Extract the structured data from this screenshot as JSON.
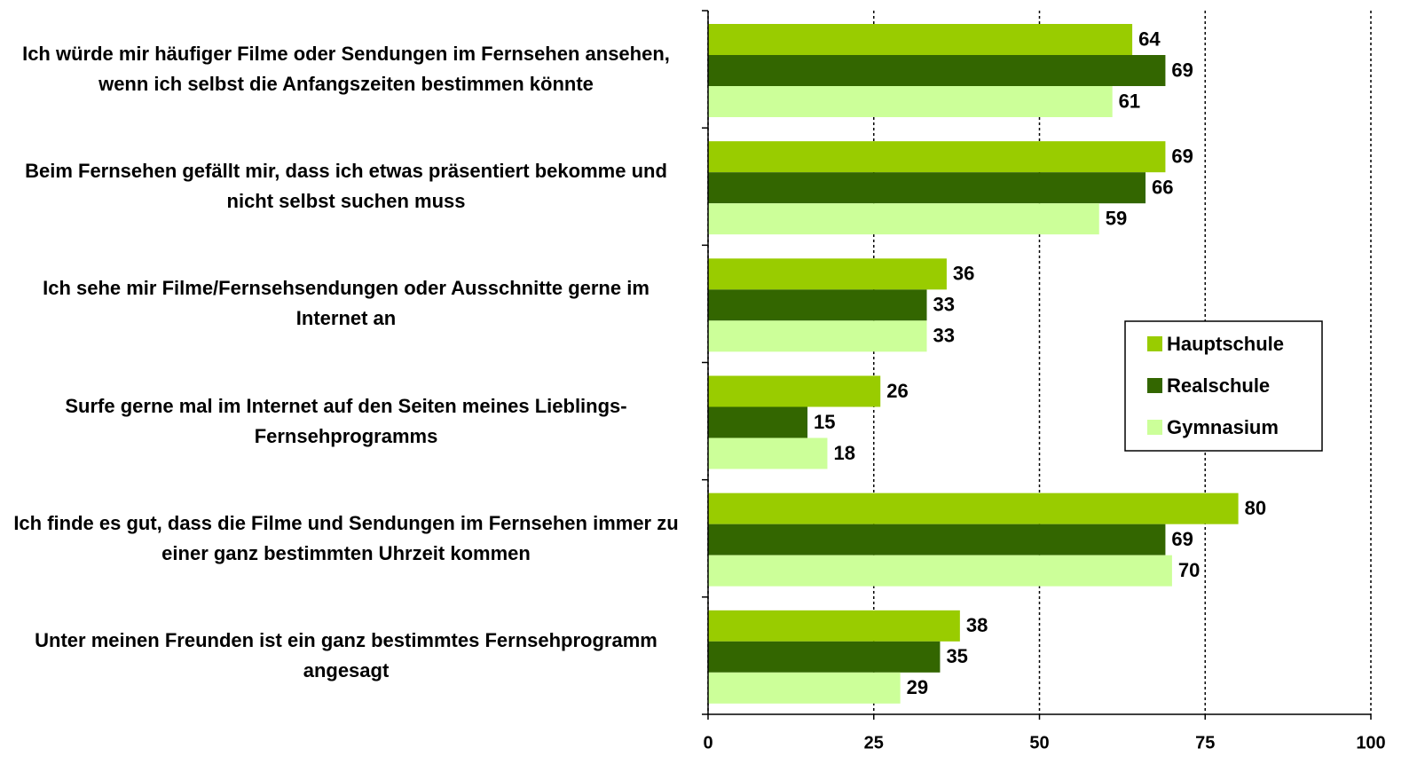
{
  "chart_data": {
    "type": "barh",
    "categories": [
      "Ich würde mir häufiger Filme oder Sendungen im Fernsehen ansehen, wenn ich selbst die Anfangszeiten bestimmen könnte",
      "Beim Fernsehen gefällt mir, dass ich etwas präsentiert bekomme und nicht selbst suchen muss",
      "Ich sehe mir Filme/Fernsehsendungen oder Ausschnitte gerne im Internet an",
      "Surfe gerne mal im Internet auf den Seiten meines Lieblings-Fernsehprogramms",
      "Ich finde es gut, dass die Filme und Sendungen im Fernsehen immer zu einer ganz bestimmten Uhrzeit kommen",
      "Unter meinen Freunden ist ein ganz bestimmtes Fernsehprogramm angesagt"
    ],
    "series": [
      {
        "name": "Hauptschule",
        "color": "#99cc00",
        "values": [
          64,
          69,
          36,
          26,
          80,
          38
        ]
      },
      {
        "name": "Realschule",
        "color": "#336600",
        "values": [
          69,
          66,
          33,
          15,
          69,
          35
        ]
      },
      {
        "name": "Gymnasium",
        "color": "#ccff99",
        "values": [
          61,
          59,
          33,
          18,
          70,
          29
        ]
      }
    ],
    "xlim": [
      0,
      100
    ],
    "xticks": [
      0,
      25,
      50,
      75,
      100
    ],
    "grid": true
  }
}
